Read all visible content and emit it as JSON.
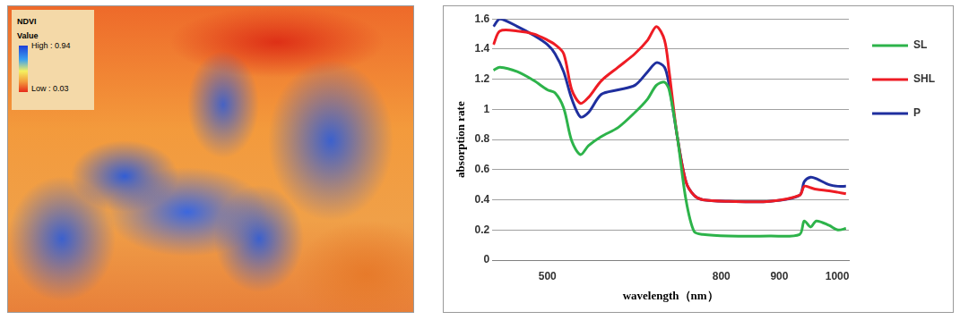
{
  "chart_data": {
    "type": "line",
    "x_label": "wavelength（nm）",
    "y_label": "absorption rate",
    "x": [
      407,
      418,
      448,
      477,
      500,
      513,
      528,
      542,
      557,
      571,
      593,
      622,
      651,
      673,
      688,
      702,
      710,
      724,
      739,
      753,
      768,
      812,
      884,
      935,
      943,
      954,
      964,
      986,
      1001,
      1015
    ],
    "series": [
      {
        "name": "SL",
        "color": "#2db34a",
        "values": [
          1.26,
          1.28,
          1.25,
          1.19,
          1.13,
          1.11,
          1.01,
          0.79,
          0.7,
          0.76,
          0.82,
          0.88,
          0.98,
          1.07,
          1.16,
          1.18,
          1.13,
          0.82,
          0.4,
          0.19,
          0.17,
          0.16,
          0.16,
          0.17,
          0.26,
          0.22,
          0.26,
          0.23,
          0.2,
          0.21
        ]
      },
      {
        "name": "SHL",
        "color": "#ee1c24",
        "values": [
          1.43,
          1.52,
          1.52,
          1.5,
          1.46,
          1.43,
          1.37,
          1.13,
          1.04,
          1.08,
          1.19,
          1.28,
          1.37,
          1.46,
          1.55,
          1.46,
          1.25,
          0.82,
          0.52,
          0.43,
          0.4,
          0.39,
          0.39,
          0.43,
          0.49,
          0.48,
          0.47,
          0.46,
          0.45,
          0.44
        ]
      },
      {
        "name": "P",
        "color": "#1f2f9e",
        "values": [
          1.55,
          1.6,
          1.55,
          1.49,
          1.43,
          1.37,
          1.25,
          1.07,
          0.95,
          0.98,
          1.1,
          1.13,
          1.16,
          1.25,
          1.31,
          1.28,
          1.16,
          0.82,
          0.52,
          0.43,
          0.4,
          0.39,
          0.39,
          0.43,
          0.52,
          0.55,
          0.54,
          0.5,
          0.49,
          0.49
        ]
      }
    ],
    "xlim": [
      405,
      1020
    ],
    "xticks": [
      500,
      800,
      900,
      1000
    ],
    "ylim": [
      0,
      1.6
    ],
    "yticks": [
      0,
      0.2,
      0.4,
      0.6,
      0.8,
      1,
      1.2,
      1.4,
      1.6
    ],
    "grid": "y",
    "legend": "right",
    "marker": "none",
    "line_style": "solid"
  },
  "ndvi_map": {
    "title": "NDVI",
    "legend_title": "Value",
    "colorbar": {
      "range": [
        0.03,
        0.94
      ],
      "ticks": [
        {
          "value": 0.94,
          "label": "High : 0.94"
        },
        {
          "value": 0.03,
          "label": "Low : 0.03"
        }
      ]
    }
  }
}
